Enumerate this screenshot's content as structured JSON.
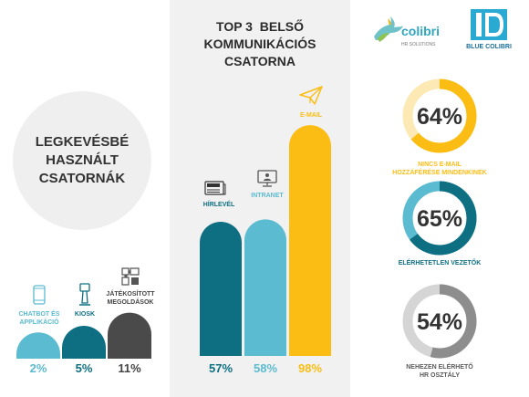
{
  "center": {
    "title_line1": "TOP 3  BELSŐ",
    "title_line2": "KOMMUNIKÁCIÓS",
    "title_line3": "CSATORNA"
  },
  "least": {
    "title_line1": "LEGKEVÉSBÉ",
    "title_line2": "HASZNÁLT",
    "title_line3": "CSATORNÁK"
  },
  "logos": {
    "colibri_name": "colibri",
    "colibri_sub": "HR SOLUTIONS",
    "blue_name": "BLUE COLIBRI"
  },
  "colors": {
    "dark_teal": "#0e6f83",
    "light_blue": "#5bbbd0",
    "yellow": "#fbbd14",
    "pale_yellow": "#fde9b3",
    "gray": "#8d8d8d",
    "dark_gray": "#5a5a5a",
    "light_gray": "#d5d5d5",
    "text_dark": "#333333"
  },
  "icons": {
    "chatbot": "smartphone-icon",
    "kiosk": "kiosk-icon",
    "gamified": "puzzle-icon",
    "newsletter": "newspaper-icon",
    "intranet": "monitor-icon",
    "email": "paper-plane-icon"
  },
  "chart_data": [
    {
      "type": "bar",
      "categories": [
        "HÍRLEVÉL",
        "INTRANET",
        "E-MAIL"
      ],
      "values": [
        57,
        58,
        98
      ],
      "value_labels": [
        "57%",
        "58%",
        "98%"
      ],
      "title": "TOP 3  BELSŐ KOMMUNIKÁCIÓS CSATORNA",
      "colors": [
        "#0e6f83",
        "#5bbbd0",
        "#fbbd14"
      ],
      "ylim": [
        0,
        100
      ]
    },
    {
      "type": "bar",
      "categories": [
        "CHATBOT ÉS APPLIKÁCIÓ",
        "KIOSK",
        "JÁTÉKOSÍTOTT MEGOLDÁSOK"
      ],
      "category_lines": [
        [
          "CHATBOT ÉS",
          "APPLIKÁCIÓ"
        ],
        [
          "KIOSK"
        ],
        [
          "JÁTÉKOSÍTOTT",
          "MEGOLDÁSOK"
        ]
      ],
      "values": [
        2,
        5,
        11
      ],
      "value_labels": [
        "2%",
        "5%",
        "11%"
      ],
      "title": "LEGKEVÉSBÉ HASZNÁLT CSATORNÁK",
      "colors": [
        "#5bbbd0",
        "#0e6f83",
        "#4a4a4a"
      ],
      "ylim": [
        0,
        100
      ]
    },
    {
      "type": "pie",
      "values": [
        64,
        65,
        54
      ],
      "value_labels": [
        "64%",
        "65%",
        "54%"
      ],
      "labels": [
        [
          "NINCS E-MAIL",
          "HOZZÁFÉRÉSE MINDENKINEK"
        ],
        [
          "ELÉRHETETLEN VEZETŐK"
        ],
        [
          "NEHEZEN ELÉRHETŐ",
          "HR OSZTÁLY"
        ]
      ],
      "colors": [
        "#fbbd14",
        "#0e6f83",
        "#8d8d8d"
      ],
      "track_colors": [
        "#fde9b3",
        "#5bbbd0",
        "#d5d5d5"
      ],
      "label_colors": [
        "#fbbd14",
        "#0e6f83",
        "#5a5a5a"
      ]
    }
  ]
}
